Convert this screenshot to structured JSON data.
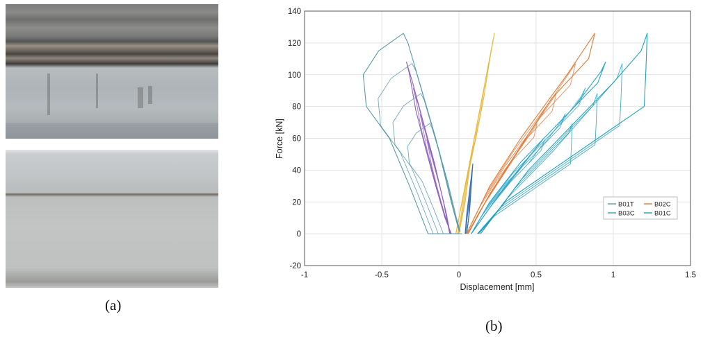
{
  "panels": {
    "a_label": "(a)",
    "b_label": "(b)"
  },
  "chart_data": {
    "type": "line",
    "xlabel": "Displacement [mm]",
    "ylabel": "Force [kN]",
    "xlim": [
      -1,
      1.5
    ],
    "ylim": [
      -20,
      140
    ],
    "xticks": [
      -1,
      -0.5,
      0,
      0.5,
      1,
      1.5
    ],
    "xtick_labels": [
      "-1",
      "-0.5",
      "0",
      "0.5",
      "1",
      "1.5"
    ],
    "yticks": [
      -20,
      0,
      20,
      40,
      60,
      80,
      100,
      120,
      140
    ],
    "ytick_labels": [
      "-20",
      "0",
      "20",
      "40",
      "60",
      "80",
      "100",
      "120",
      "140"
    ],
    "grid": true,
    "legend_position": "bottom-right",
    "legend_layout": "2-columns",
    "series": [
      {
        "name": "B01T",
        "color": "#5b9aa9",
        "points": [
          [
            0.02,
            0
          ],
          [
            -0.2,
            0
          ],
          [
            -0.32,
            30
          ],
          [
            -0.45,
            60
          ],
          [
            -0.6,
            80
          ],
          [
            -0.62,
            100
          ],
          [
            -0.52,
            115
          ],
          [
            -0.36,
            126
          ],
          [
            -0.33,
            120
          ],
          [
            -0.15,
            60
          ],
          [
            -0.05,
            20
          ],
          [
            0.0,
            2
          ]
        ]
      },
      {
        "name": "B02C",
        "color": "#e07b39",
        "points": [
          [
            0.05,
            0
          ],
          [
            0.2,
            30
          ],
          [
            0.4,
            60
          ],
          [
            0.55,
            80
          ],
          [
            0.7,
            100
          ],
          [
            0.88,
            126
          ],
          [
            0.84,
            110
          ],
          [
            0.6,
            85
          ],
          [
            0.4,
            55
          ],
          [
            0.2,
            25
          ],
          [
            0.06,
            0
          ]
        ]
      },
      {
        "name": "B03C",
        "color": "#2aa4c9",
        "points": [
          [
            0.08,
            0
          ],
          [
            0.3,
            30
          ],
          [
            0.55,
            60
          ],
          [
            0.75,
            80
          ],
          [
            0.92,
            102
          ],
          [
            0.95,
            108
          ],
          [
            0.9,
            95
          ],
          [
            0.7,
            75
          ],
          [
            0.4,
            45
          ],
          [
            0.2,
            20
          ],
          [
            0.08,
            0
          ]
        ]
      },
      {
        "name": "B01C",
        "color": "#1f9fbf",
        "points": [
          [
            0.14,
            0
          ],
          [
            0.45,
            40
          ],
          [
            0.75,
            70
          ],
          [
            1.0,
            95
          ],
          [
            1.18,
            115
          ],
          [
            1.22,
            126
          ],
          [
            1.21,
            100
          ],
          [
            1.2,
            80
          ],
          [
            0.9,
            60
          ],
          [
            0.6,
            40
          ],
          [
            0.3,
            20
          ],
          [
            0.12,
            0
          ]
        ]
      }
    ],
    "additional_curves": [
      {
        "color": "#8f5fbf",
        "points": [
          [
            -0.05,
            0
          ],
          [
            -0.09,
            10
          ],
          [
            -0.15,
            30
          ],
          [
            -0.22,
            55
          ],
          [
            -0.28,
            78
          ],
          [
            -0.32,
            100
          ],
          [
            -0.34,
            108
          ],
          [
            -0.3,
            95
          ],
          [
            -0.23,
            70
          ],
          [
            -0.16,
            45
          ],
          [
            -0.1,
            20
          ],
          [
            -0.06,
            0
          ]
        ]
      },
      {
        "color": "#e8b83d",
        "points": [
          [
            -0.02,
            0
          ],
          [
            0.02,
            20
          ],
          [
            0.06,
            40
          ],
          [
            0.11,
            60
          ],
          [
            0.16,
            85
          ],
          [
            0.2,
            110
          ],
          [
            0.23,
            126
          ],
          [
            0.19,
            106
          ],
          [
            0.14,
            80
          ],
          [
            0.08,
            50
          ],
          [
            0.04,
            20
          ],
          [
            0.0,
            0
          ]
        ]
      },
      {
        "color": "#3b6fb0",
        "points": [
          [
            0.05,
            0
          ],
          [
            0.07,
            15
          ],
          [
            0.08,
            30
          ],
          [
            0.09,
            44
          ],
          [
            0.07,
            28
          ],
          [
            0.05,
            12
          ],
          [
            0.04,
            0
          ]
        ]
      }
    ]
  }
}
